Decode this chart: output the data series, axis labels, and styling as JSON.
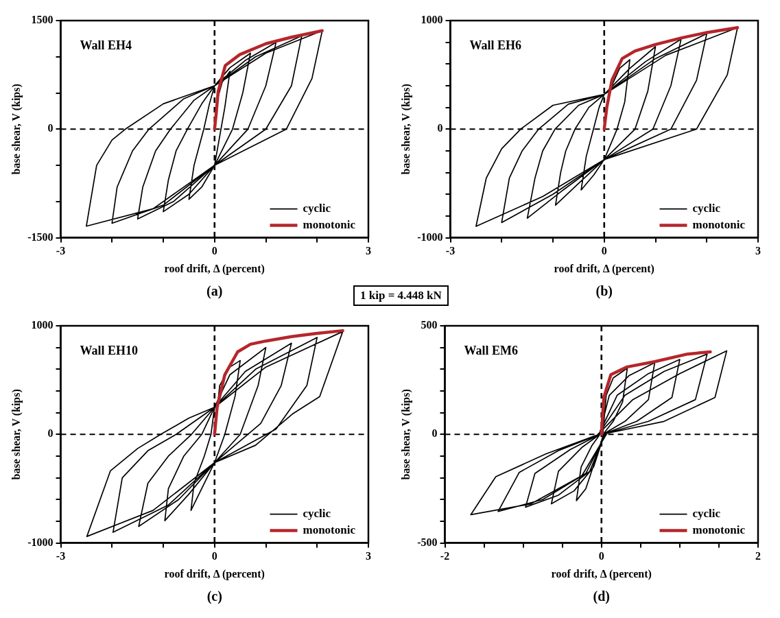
{
  "chart_data": [
    {
      "type": "line",
      "title": "Wall EH4",
      "xlabel": "roof drift, Δ (percent)",
      "ylabel": "base shear, V (kips)",
      "xlim": [
        -3,
        3
      ],
      "xticks": [
        -3,
        {
          "value": -2,
          "label": null
        },
        {
          "value": -1,
          "label": null
        },
        0,
        {
          "value": 1,
          "label": null
        },
        {
          "value": 2,
          "label": null
        },
        3
      ],
      "ylim": [
        -1500,
        1500
      ],
      "yticks": [
        -1500,
        {
          "value": -1000,
          "label": null
        },
        {
          "value": -500,
          "label": null
        },
        0,
        {
          "value": 500,
          "label": null
        },
        {
          "value": 1000,
          "label": null
        },
        1500
      ],
      "legend": "bottom right",
      "ref_lines": [
        {
          "axis": "x",
          "value": 0,
          "color": "#000000",
          "line_style": "dashed"
        },
        {
          "axis": "y",
          "value": 0,
          "color": "#000000",
          "line_style": "dashed"
        }
      ],
      "annotations": [
        "(a)",
        "1 kip = 4.448 kN"
      ],
      "series": [
        {
          "name": "cyclic",
          "color": "#000000",
          "x": [
            0,
            0.05,
            0.15,
            0.3,
            0.2,
            0.1,
            0,
            -0.25,
            -0.5,
            -0.4,
            -0.21,
            -0.1,
            0,
            0.3,
            0.7,
            0.55,
            0.35,
            0,
            -0.5,
            -1.0,
            -0.9,
            -0.75,
            -0.53,
            -0.25,
            0,
            0.6,
            1.2,
            1.0,
            0.65,
            0,
            -0.8,
            -1.5,
            -1.4,
            -1.15,
            -0.86,
            -0.4,
            0,
            0.8,
            1.7,
            1.5,
            1.0,
            0,
            -1.0,
            -2.0,
            -1.9,
            -1.6,
            -1.28,
            -0.6,
            0,
            1.0,
            2.1,
            1.9,
            1.4,
            0,
            -1.2,
            -2.5,
            -2.3,
            -2.0,
            -1.74,
            -1.0,
            0
          ],
          "values": [
            0,
            400,
            650,
            800,
            300,
            -100,
            -500,
            -800,
            -970,
            -500,
            0,
            350,
            600,
            850,
            1050,
            500,
            0,
            -500,
            -900,
            -1140,
            -700,
            -300,
            0,
            350,
            600,
            950,
            1200,
            600,
            0,
            -500,
            -1000,
            -1240,
            -800,
            -300,
            0,
            400,
            600,
            1000,
            1290,
            600,
            0,
            -500,
            -1050,
            -1300,
            -800,
            -300,
            0,
            420,
            600,
            1050,
            1360,
            700,
            0,
            -500,
            -1100,
            -1340,
            -500,
            -150,
            0,
            350,
            600
          ]
        },
        {
          "name": "monotonic",
          "color": "#b5262b",
          "x": [
            0,
            0.03,
            0.07,
            0.21,
            0.49,
            1.0,
            1.5,
            2.1
          ],
          "values": [
            0,
            200,
            520,
            880,
            1030,
            1180,
            1270,
            1360
          ]
        }
      ]
    },
    {
      "type": "line",
      "title": "Wall EH6",
      "xlabel": "roof drift, Δ (percent)",
      "ylabel": "base shear, V (kips)",
      "xlim": [
        -3,
        3
      ],
      "xticks": [
        -3,
        {
          "value": -2,
          "label": null
        },
        {
          "value": -1,
          "label": null
        },
        0,
        {
          "value": 1,
          "label": null
        },
        {
          "value": 2,
          "label": null
        },
        3
      ],
      "ylim": [
        -1000,
        1000
      ],
      "yticks": [
        -1000,
        {
          "value": -800,
          "label": null
        },
        {
          "value": -600,
          "label": null
        },
        {
          "value": -400,
          "label": null
        },
        {
          "value": -200,
          "label": null
        },
        0,
        {
          "value": 200,
          "label": null
        },
        {
          "value": 400,
          "label": null
        },
        {
          "value": 600,
          "label": null
        },
        {
          "value": 800,
          "label": null
        },
        1000
      ],
      "legend": "bottom right",
      "ref_lines": [
        {
          "axis": "x",
          "value": 0,
          "color": "#000000",
          "line_style": "dashed"
        },
        {
          "axis": "y",
          "value": 0,
          "color": "#000000",
          "line_style": "dashed"
        }
      ],
      "annotations": [
        "(b)"
      ],
      "series": [
        {
          "name": "cyclic",
          "color": "#000000",
          "x": [
            0,
            0.1,
            0.3,
            0.5,
            0.4,
            0.25,
            0,
            -0.2,
            -0.45,
            -0.35,
            -0.21,
            -0.1,
            0,
            0.5,
            1.0,
            0.85,
            0.6,
            0,
            -0.5,
            -0.95,
            -0.85,
            -0.75,
            -0.57,
            -0.3,
            0,
            0.8,
            1.5,
            1.3,
            0.95,
            0,
            -0.8,
            -1.5,
            -1.35,
            -1.2,
            -0.96,
            -0.5,
            0,
            1.0,
            2.0,
            1.8,
            1.3,
            0,
            -1.0,
            -2.0,
            -1.85,
            -1.6,
            -1.28,
            -0.7,
            0,
            1.2,
            2.6,
            2.4,
            1.8,
            0,
            -1.2,
            -2.5,
            -2.3,
            -2.0,
            -1.63,
            -1.0,
            0
          ],
          "values": [
            0,
            350,
            560,
            640,
            250,
            0,
            -280,
            -420,
            -560,
            -250,
            0,
            200,
            320,
            560,
            760,
            350,
            0,
            -280,
            -500,
            -700,
            -400,
            -200,
            0,
            200,
            320,
            620,
            830,
            400,
            0,
            -280,
            -560,
            -820,
            -450,
            -200,
            0,
            220,
            320,
            650,
            880,
            450,
            0,
            -280,
            -600,
            -860,
            -450,
            -200,
            0,
            230,
            320,
            680,
            935,
            500,
            0,
            -280,
            -620,
            -895,
            -450,
            -180,
            0,
            220,
            320
          ]
        },
        {
          "name": "monotonic",
          "color": "#b5262b",
          "x": [
            0,
            0.05,
            0.15,
            0.35,
            0.6,
            1.0,
            1.5,
            2.0,
            2.6
          ],
          "values": [
            0,
            200,
            450,
            650,
            720,
            780,
            840,
            890,
            935
          ]
        }
      ]
    },
    {
      "type": "line",
      "title": "Wall EH10",
      "xlabel": "roof drift, Δ (percent)",
      "ylabel": "base shear, V (kips)",
      "xlim": [
        -3,
        3
      ],
      "xticks": [
        -3,
        {
          "value": -2,
          "label": null
        },
        {
          "value": -1,
          "label": null
        },
        0,
        {
          "value": 1,
          "label": null
        },
        {
          "value": 2,
          "label": null
        },
        3
      ],
      "ylim": [
        -1000,
        1000
      ],
      "yticks": [
        -1000,
        {
          "value": -800,
          "label": null
        },
        {
          "value": -600,
          "label": null
        },
        {
          "value": -400,
          "label": null
        },
        {
          "value": -200,
          "label": null
        },
        0,
        {
          "value": 200,
          "label": null
        },
        {
          "value": 400,
          "label": null
        },
        {
          "value": 600,
          "label": null
        },
        {
          "value": 800,
          "label": null
        },
        1000
      ],
      "legend": "bottom right",
      "ref_lines": [
        {
          "axis": "x",
          "value": 0,
          "color": "#000000",
          "line_style": "dashed"
        },
        {
          "axis": "y",
          "value": 0,
          "color": "#000000",
          "line_style": "dashed"
        }
      ],
      "annotations": [
        "(c)"
      ],
      "series": [
        {
          "name": "cyclic",
          "color": "#000000",
          "x": [
            0,
            0.1,
            0.3,
            0.5,
            0.4,
            0.2,
            0,
            -0.2,
            -0.46,
            -0.4,
            -0.2,
            -0.07,
            0,
            0.3,
            1.0,
            0.85,
            0.5,
            0,
            -0.5,
            -0.97,
            -0.9,
            -0.6,
            -0.25,
            0,
            0.6,
            1.5,
            1.3,
            0.9,
            0,
            -0.7,
            -1.48,
            -1.3,
            -0.9,
            -0.45,
            0,
            0.8,
            2.0,
            1.8,
            1.2,
            0,
            -0.9,
            -1.98,
            -1.8,
            -1.3,
            -0.75,
            0,
            1.0,
            2.5,
            2.05,
            1.52,
            0.8,
            0,
            -1.2,
            -2.49,
            -2.03,
            -1.5,
            -1.05,
            -0.5,
            0
          ],
          "values": [
            0,
            450,
            620,
            680,
            350,
            0,
            -260,
            -450,
            -700,
            -450,
            -200,
            0,
            250,
            550,
            800,
            450,
            0,
            -260,
            -550,
            -795,
            -500,
            -200,
            0,
            250,
            580,
            840,
            450,
            100,
            -260,
            -600,
            -848,
            -450,
            -200,
            0,
            250,
            600,
            893,
            450,
            50,
            -260,
            -650,
            -902,
            -400,
            -150,
            0,
            250,
            620,
            947,
            348,
            188,
            -100,
            -260,
            -700,
            -940,
            -335,
            -130,
            0,
            150,
            250
          ]
        },
        {
          "name": "monotonic",
          "color": "#b5262b",
          "x": [
            0,
            0.05,
            0.2,
            0.45,
            0.7,
            1.0,
            1.5,
            2.0,
            2.5
          ],
          "values": [
            0,
            250,
            550,
            760,
            830,
            860,
            900,
            930,
            955
          ]
        }
      ]
    },
    {
      "type": "line",
      "title": "Wall EM6",
      "xlabel": "roof drift, Δ (percent)",
      "ylabel": "base shear, V (kips)",
      "xlim": [
        -2,
        2
      ],
      "xticks": [
        -2,
        {
          "value": -1.5,
          "label": null
        },
        {
          "value": -1,
          "label": null
        },
        {
          "value": -0.5,
          "label": null
        },
        0,
        {
          "value": 0.5,
          "label": null
        },
        {
          "value": 1,
          "label": null
        },
        {
          "value": 1.5,
          "label": null
        },
        2
      ],
      "ylim": [
        -500,
        500
      ],
      "yticks": [
        -500,
        {
          "value": -400,
          "label": null
        },
        {
          "value": -300,
          "label": null
        },
        {
          "value": -200,
          "label": null
        },
        {
          "value": -100,
          "label": null
        },
        0,
        {
          "value": 100,
          "label": null
        },
        {
          "value": 200,
          "label": null
        },
        {
          "value": 300,
          "label": null
        },
        {
          "value": 400,
          "label": null
        },
        500
      ],
      "legend": "bottom right",
      "ref_lines": [
        {
          "axis": "x",
          "value": 0,
          "color": "#000000",
          "line_style": "dashed"
        },
        {
          "axis": "y",
          "value": 0,
          "color": "#000000",
          "line_style": "dashed"
        }
      ],
      "annotations": [
        "(d)"
      ],
      "series": [
        {
          "name": "cyclic",
          "color": "#000000",
          "x": [
            0.02,
            0.06,
            0.15,
            0.33,
            0.27,
            0.15,
            0.03,
            -0.08,
            -0.2,
            -0.32,
            -0.26,
            -0.12,
            -0.03,
            0.1,
            0.35,
            0.68,
            0.6,
            0.3,
            0.04,
            -0.1,
            -0.35,
            -0.64,
            -0.55,
            -0.25,
            -0.04,
            0.2,
            0.6,
            1.0,
            0.9,
            0.45,
            0.05,
            -0.15,
            -0.55,
            -0.97,
            -0.85,
            -0.4,
            -0.05,
            0.3,
            0.8,
            1.35,
            1.2,
            0.6,
            0.06,
            -0.2,
            -0.75,
            -1.32,
            -1.05,
            -0.55,
            -0.06,
            0.4,
            1.0,
            1.6,
            1.45,
            0.8,
            0.07,
            -0.25,
            -0.9,
            -1.67,
            -1.35,
            -0.71,
            -0.07
          ],
          "values": [
            10,
            180,
            260,
            305,
            150,
            60,
            5,
            -120,
            -250,
            -305,
            -150,
            -50,
            -5,
            180,
            270,
            330,
            160,
            60,
            5,
            -150,
            -260,
            -320,
            -170,
            -60,
            -5,
            180,
            280,
            345,
            170,
            60,
            5,
            -170,
            -280,
            -335,
            -180,
            -70,
            -5,
            180,
            290,
            370,
            160,
            60,
            5,
            -180,
            -300,
            -355,
            -175,
            -75,
            -5,
            160,
            280,
            385,
            170,
            60,
            5,
            -190,
            -320,
            -370,
            -195,
            -90,
            -5
          ]
        },
        {
          "name": "monotonic",
          "color": "#b5262b",
          "x": [
            0,
            0.03,
            0.12,
            0.32,
            0.68,
            1.1,
            1.39
          ],
          "values": [
            0,
            170,
            275,
            310,
            335,
            370,
            380
          ]
        }
      ]
    }
  ]
}
